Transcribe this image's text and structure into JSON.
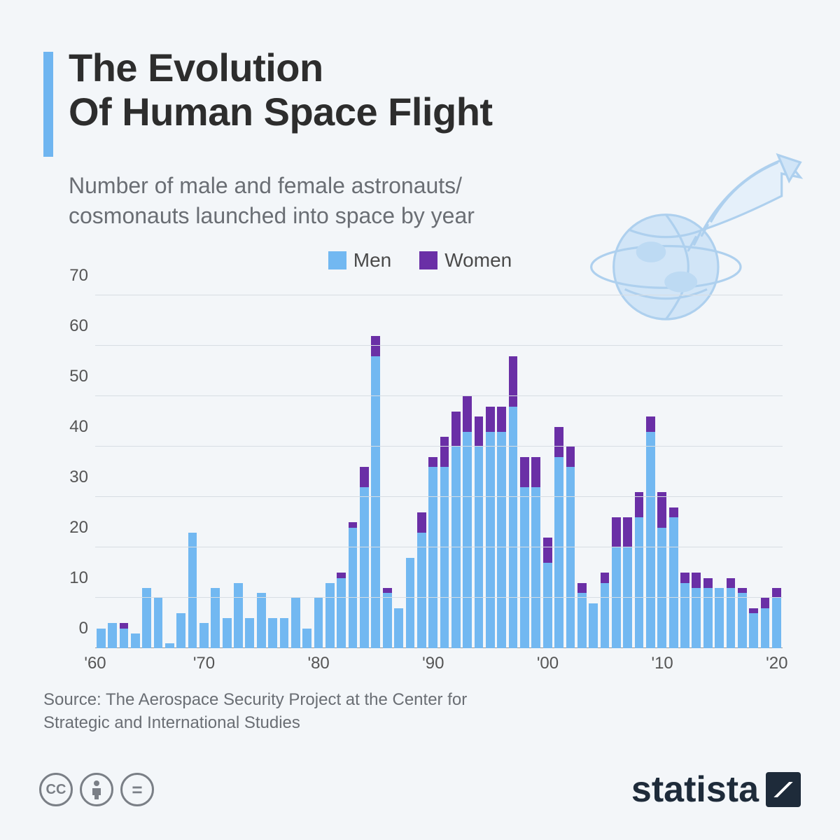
{
  "header": {
    "title_line1": "The Evolution",
    "title_line2": "Of Human Space Flight",
    "subtitle": "Number of male and female astronauts/ cosmonauts launched into space by year"
  },
  "legend": {
    "men_label": "Men",
    "women_label": "Women"
  },
  "chart": {
    "type": "stacked-bar",
    "colors": {
      "men": "#72b8f1",
      "women": "#6a2fa6",
      "grid": "#d7dde3",
      "background": "#f3f6f9"
    },
    "ylim": [
      0,
      70
    ],
    "yticks": [
      0,
      10,
      20,
      30,
      40,
      50,
      60,
      70
    ],
    "years_start": 1961,
    "years_end": 2020,
    "x_tick_labels": [
      "'60",
      "'70",
      "'80",
      "'90",
      "'00",
      "'10",
      "'20"
    ],
    "x_tick_years": [
      1960,
      1970,
      1980,
      1990,
      2000,
      2010,
      2020
    ],
    "title_fontsize": 56,
    "subtitle_fontsize": 32,
    "axis_fontsize": 24,
    "bar_inner_width_pct": 78,
    "series": [
      {
        "year": 1961,
        "men": 4,
        "women": 0
      },
      {
        "year": 1962,
        "men": 5,
        "women": 0
      },
      {
        "year": 1963,
        "men": 4,
        "women": 1
      },
      {
        "year": 1964,
        "men": 3,
        "women": 0
      },
      {
        "year": 1965,
        "men": 12,
        "women": 0
      },
      {
        "year": 1966,
        "men": 10,
        "women": 0
      },
      {
        "year": 1967,
        "men": 1,
        "women": 0
      },
      {
        "year": 1968,
        "men": 7,
        "women": 0
      },
      {
        "year": 1969,
        "men": 23,
        "women": 0
      },
      {
        "year": 1970,
        "men": 5,
        "women": 0
      },
      {
        "year": 1971,
        "men": 12,
        "women": 0
      },
      {
        "year": 1972,
        "men": 6,
        "women": 0
      },
      {
        "year": 1973,
        "men": 13,
        "women": 0
      },
      {
        "year": 1974,
        "men": 6,
        "women": 0
      },
      {
        "year": 1975,
        "men": 11,
        "women": 0
      },
      {
        "year": 1976,
        "men": 6,
        "women": 0
      },
      {
        "year": 1977,
        "men": 6,
        "women": 0
      },
      {
        "year": 1978,
        "men": 10,
        "women": 0
      },
      {
        "year": 1979,
        "men": 4,
        "women": 0
      },
      {
        "year": 1980,
        "men": 10,
        "women": 0
      },
      {
        "year": 1981,
        "men": 13,
        "women": 0
      },
      {
        "year": 1982,
        "men": 14,
        "women": 1
      },
      {
        "year": 1983,
        "men": 24,
        "women": 1
      },
      {
        "year": 1984,
        "men": 32,
        "women": 4
      },
      {
        "year": 1985,
        "men": 58,
        "women": 4
      },
      {
        "year": 1986,
        "men": 11,
        "women": 1
      },
      {
        "year": 1987,
        "men": 8,
        "women": 0
      },
      {
        "year": 1988,
        "men": 18,
        "women": 0
      },
      {
        "year": 1989,
        "men": 23,
        "women": 4
      },
      {
        "year": 1990,
        "men": 36,
        "women": 2
      },
      {
        "year": 1991,
        "men": 36,
        "women": 6
      },
      {
        "year": 1992,
        "men": 40,
        "women": 7
      },
      {
        "year": 1993,
        "men": 43,
        "women": 7
      },
      {
        "year": 1994,
        "men": 40,
        "women": 6
      },
      {
        "year": 1995,
        "men": 43,
        "women": 5
      },
      {
        "year": 1996,
        "men": 43,
        "women": 5
      },
      {
        "year": 1997,
        "men": 48,
        "women": 10
      },
      {
        "year": 1998,
        "men": 32,
        "women": 6
      },
      {
        "year": 1999,
        "men": 32,
        "women": 6
      },
      {
        "year": 2000,
        "men": 17,
        "women": 5
      },
      {
        "year": 2001,
        "men": 38,
        "women": 6
      },
      {
        "year": 2002,
        "men": 36,
        "women": 4
      },
      {
        "year": 2003,
        "men": 11,
        "women": 2
      },
      {
        "year": 2004,
        "men": 9,
        "women": 0
      },
      {
        "year": 2005,
        "men": 13,
        "women": 2
      },
      {
        "year": 2006,
        "men": 20,
        "women": 6
      },
      {
        "year": 2007,
        "men": 20,
        "women": 6
      },
      {
        "year": 2008,
        "men": 26,
        "women": 5
      },
      {
        "year": 2009,
        "men": 43,
        "women": 3
      },
      {
        "year": 2010,
        "men": 24,
        "women": 7
      },
      {
        "year": 2011,
        "men": 26,
        "women": 2
      },
      {
        "year": 2012,
        "men": 13,
        "women": 2
      },
      {
        "year": 2013,
        "men": 12,
        "women": 3
      },
      {
        "year": 2014,
        "men": 12,
        "women": 2
      },
      {
        "year": 2015,
        "men": 12,
        "women": 0
      },
      {
        "year": 2016,
        "men": 12,
        "women": 2
      },
      {
        "year": 2017,
        "men": 11,
        "women": 1
      },
      {
        "year": 2018,
        "men": 7,
        "women": 1
      },
      {
        "year": 2019,
        "men": 8,
        "women": 2
      },
      {
        "year": 2020,
        "men": 10,
        "women": 2
      }
    ]
  },
  "source": "Source: The Aerospace Security Project at the Center for Strategic and International Studies",
  "footer": {
    "brand": "statista",
    "license_icons": [
      "cc",
      "by",
      "nd"
    ]
  },
  "illustration": {
    "stroke": "#a9cdee",
    "fill": "#cfe4f7"
  }
}
